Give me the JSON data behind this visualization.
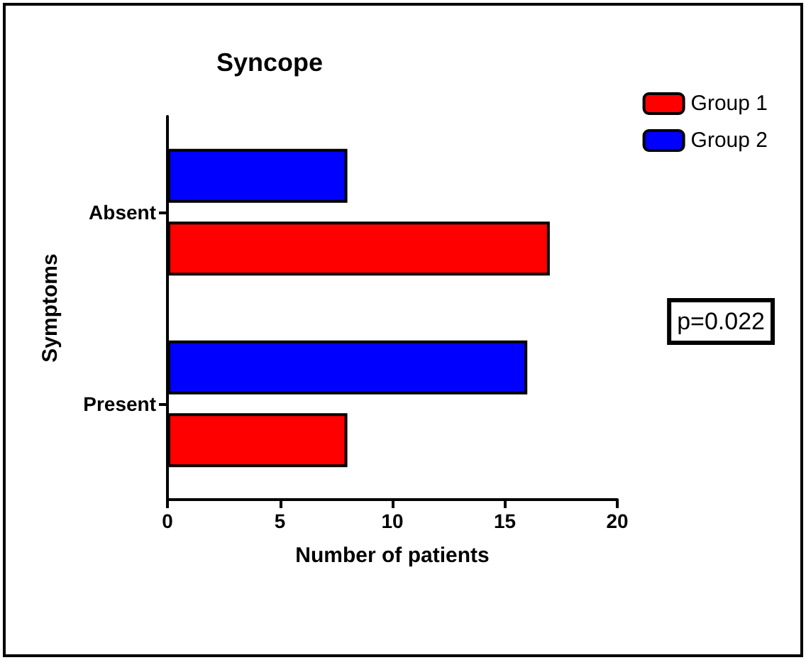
{
  "chart_data": {
    "type": "bar",
    "orientation": "horizontal",
    "title": "Syncope",
    "xlabel": "Number of patients",
    "ylabel": "Symptoms",
    "categories": [
      "Absent",
      "Present"
    ],
    "series": [
      {
        "name": "Group 1",
        "color": "#ff0000",
        "values": [
          17,
          8
        ]
      },
      {
        "name": "Group 2",
        "color": "#0000ff",
        "values": [
          8,
          16
        ]
      }
    ],
    "xlim": [
      0,
      20
    ],
    "xticks": [
      0,
      5,
      10,
      15,
      20
    ],
    "grid": false,
    "legend": "top right",
    "annotations": [
      "p=0.022"
    ]
  }
}
